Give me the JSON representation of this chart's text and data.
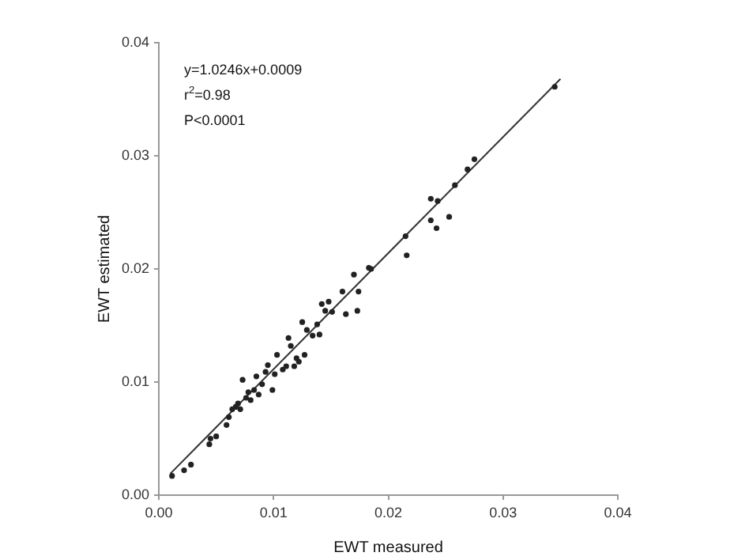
{
  "chart_data": {
    "type": "scatter",
    "xlabel": "EWT measured",
    "ylabel": "EWT estimated",
    "annotations": [
      "y=1.0246x+0.0009",
      "r$^{2}$=0.98",
      "P<0.0001"
    ],
    "xlim": [
      0,
      0.04
    ],
    "ylim": [
      0,
      0.04
    ],
    "xticks": [
      {
        "value": 0,
        "label": "0.00"
      },
      {
        "value": 0.01,
        "label": "0.01"
      },
      {
        "value": 0.02,
        "label": "0.02"
      },
      {
        "value": 0.03,
        "label": "0.03"
      },
      {
        "value": 0.04,
        "label": "0.04"
      }
    ],
    "yticks": [
      {
        "value": 0,
        "label": "0.00"
      },
      {
        "value": 0.01,
        "label": "0.01"
      },
      {
        "value": 0.02,
        "label": "0.02"
      },
      {
        "value": 0.03,
        "label": "0.03"
      },
      {
        "value": 0.04,
        "label": "0.04"
      }
    ],
    "grid": false,
    "legend": false,
    "series": [
      {
        "marker": "circle",
        "color": "#222222",
        "x": [
          0.00115,
          0.0022,
          0.0028,
          0.0044,
          0.0045,
          0.005,
          0.0059,
          0.0061,
          0.0064,
          0.0067,
          0.0069,
          0.0071,
          0.0073,
          0.0076,
          0.0078,
          0.008,
          0.0083,
          0.0085,
          0.0087,
          0.009,
          0.0093,
          0.0095,
          0.0099,
          0.0101,
          0.0103,
          0.0108,
          0.0111,
          0.0113,
          0.0115,
          0.0118,
          0.012,
          0.0122,
          0.0125,
          0.0127,
          0.0129,
          0.0134,
          0.0138,
          0.014,
          0.0142,
          0.0145,
          0.0148,
          0.0151,
          0.016,
          0.0163,
          0.017,
          0.0173,
          0.0174,
          0.0183,
          0.0185,
          0.0215,
          0.0216,
          0.0237,
          0.0243,
          0.0237,
          0.0242,
          0.0253,
          0.0258,
          0.0269,
          0.0275,
          0.0345
        ],
        "values": [
          0.0017,
          0.0022,
          0.0027,
          0.0045,
          0.005,
          0.0052,
          0.0062,
          0.0069,
          0.0076,
          0.0078,
          0.0081,
          0.0076,
          0.0102,
          0.0086,
          0.0091,
          0.0084,
          0.0093,
          0.0105,
          0.0089,
          0.0098,
          0.0109,
          0.0115,
          0.0093,
          0.0107,
          0.0124,
          0.0111,
          0.0114,
          0.0139,
          0.0132,
          0.0114,
          0.0121,
          0.0118,
          0.0153,
          0.0124,
          0.0146,
          0.0141,
          0.0151,
          0.0142,
          0.0169,
          0.0163,
          0.0171,
          0.0162,
          0.018,
          0.016,
          0.0195,
          0.0163,
          0.018,
          0.0201,
          0.02,
          0.0229,
          0.0212,
          0.0262,
          0.026,
          0.0243,
          0.0236,
          0.0246,
          0.0274,
          0.0288,
          0.0297,
          0.0361
        ]
      },
      {
        "type": "line",
        "color": "#333333",
        "x": [
          0.001,
          0.035
        ],
        "values": [
          0.0019,
          0.0368
        ]
      }
    ]
  }
}
